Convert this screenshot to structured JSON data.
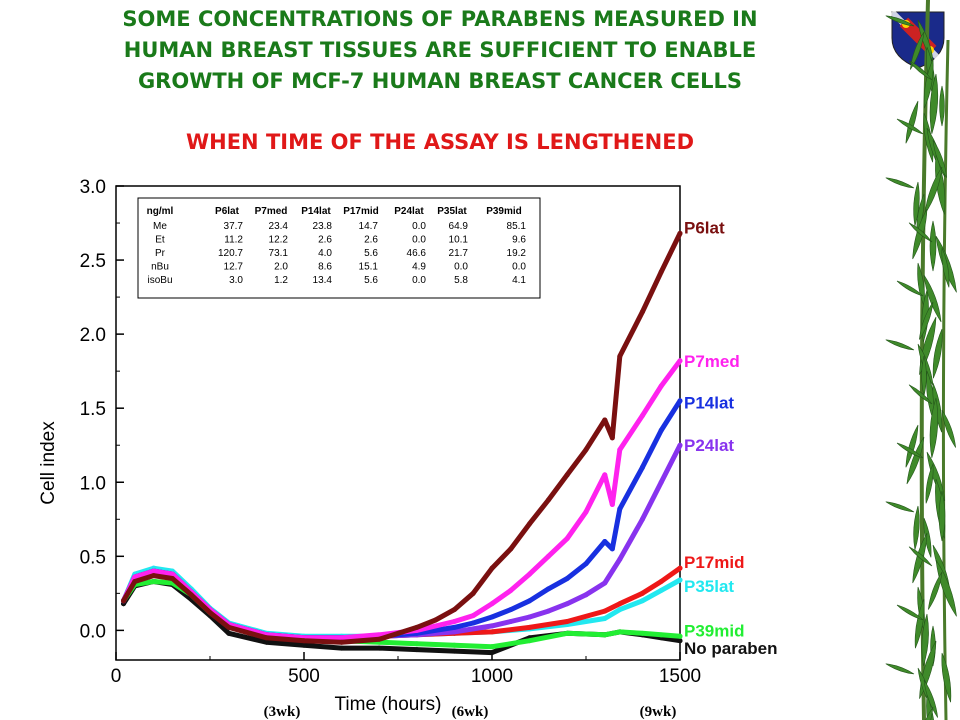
{
  "title_lines": [
    "SOME CONCENTRATIONS OF PARABENS MEASURED IN",
    "HUMAN BREAST TISSUES ARE SUFFICIENT TO ENABLE",
    "GROWTH OF MCF-7 HUMAN BREAST CANCER CELLS"
  ],
  "subtitle": "WHEN TIME OF THE ASSAY IS LENGTHENED",
  "logo_icon": "university-crest-icon",
  "decoration_icon": "bamboo-border-icon",
  "chart_data": {
    "type": "line",
    "xlabel": "Time (hours)",
    "ylabel": "Cell index",
    "xlim": [
      0,
      1500
    ],
    "ylim": [
      -0.2,
      3.0
    ],
    "xticks": [
      0,
      500,
      1000,
      1500
    ],
    "yticks": [
      0.0,
      0.5,
      1.0,
      1.5,
      2.0,
      2.5,
      3.0
    ],
    "ytick_labels": [
      "0.0",
      "0.5",
      "1.0",
      "1.5",
      "2.0",
      "2.5",
      "3.0"
    ],
    "week_labels": [
      {
        "x": 500,
        "text": "(3wk)"
      },
      {
        "x": 1000,
        "text": "(6wk)"
      },
      {
        "x": 1500,
        "text": "(9wk)"
      }
    ],
    "inset_table": {
      "headers": [
        "ng/ml",
        "P6lat",
        "P7med",
        "P14lat",
        "P17mid",
        "P24lat",
        "P35lat",
        "P39mid"
      ],
      "rows": [
        [
          "Me",
          "37.7",
          "23.4",
          "23.8",
          "14.7",
          "0.0",
          "64.9",
          "85.1"
        ],
        [
          "Et",
          "11.2",
          "12.2",
          "2.6",
          "2.6",
          "0.0",
          "10.1",
          "9.6"
        ],
        [
          "Pr",
          "120.7",
          "73.1",
          "4.0",
          "5.6",
          "46.6",
          "21.7",
          "19.2"
        ],
        [
          "nBu",
          "12.7",
          "2.0",
          "8.6",
          "15.1",
          "4.9",
          "0.0",
          "0.0"
        ],
        [
          "isoBu",
          "3.0",
          "1.2",
          "13.4",
          "5.6",
          "0.0",
          "5.8",
          "4.1"
        ]
      ]
    },
    "series": [
      {
        "name": "P6lat",
        "color": "#7a1010",
        "x": [
          20,
          50,
          100,
          150,
          200,
          250,
          300,
          400,
          500,
          600,
          700,
          800,
          850,
          900,
          950,
          1000,
          1050,
          1100,
          1150,
          1200,
          1250,
          1300,
          1320,
          1340,
          1400,
          1450,
          1500
        ],
        "y": [
          0.2,
          0.33,
          0.37,
          0.35,
          0.24,
          0.12,
          0.02,
          -0.05,
          -0.07,
          -0.08,
          -0.06,
          0.02,
          0.07,
          0.14,
          0.25,
          0.42,
          0.55,
          0.72,
          0.88,
          1.05,
          1.22,
          1.42,
          1.3,
          1.85,
          2.15,
          2.42,
          2.68
        ]
      },
      {
        "name": "P7med",
        "color": "#ff22ee",
        "x": [
          20,
          50,
          100,
          150,
          200,
          250,
          300,
          400,
          500,
          600,
          700,
          800,
          900,
          950,
          1000,
          1050,
          1100,
          1150,
          1200,
          1250,
          1300,
          1320,
          1340,
          1400,
          1450,
          1500
        ],
        "y": [
          0.2,
          0.36,
          0.4,
          0.38,
          0.26,
          0.14,
          0.04,
          -0.03,
          -0.05,
          -0.05,
          -0.03,
          0.0,
          0.06,
          0.1,
          0.18,
          0.27,
          0.38,
          0.5,
          0.62,
          0.8,
          1.05,
          0.85,
          1.22,
          1.45,
          1.65,
          1.82
        ]
      },
      {
        "name": "P14lat",
        "color": "#1830e0",
        "x": [
          20,
          50,
          100,
          150,
          200,
          250,
          300,
          400,
          500,
          600,
          700,
          800,
          900,
          950,
          1000,
          1050,
          1100,
          1150,
          1200,
          1250,
          1300,
          1320,
          1340,
          1400,
          1450,
          1500
        ],
        "y": [
          0.2,
          0.36,
          0.4,
          0.38,
          0.26,
          0.14,
          0.04,
          -0.03,
          -0.05,
          -0.05,
          -0.04,
          -0.02,
          0.02,
          0.05,
          0.09,
          0.14,
          0.2,
          0.28,
          0.35,
          0.45,
          0.6,
          0.55,
          0.82,
          1.1,
          1.35,
          1.55
        ]
      },
      {
        "name": "P24lat",
        "color": "#8833ee",
        "x": [
          20,
          50,
          100,
          150,
          200,
          250,
          300,
          400,
          500,
          600,
          700,
          800,
          900,
          1000,
          1050,
          1100,
          1150,
          1200,
          1250,
          1300,
          1340,
          1400,
          1450,
          1500
        ],
        "y": [
          0.2,
          0.36,
          0.4,
          0.38,
          0.26,
          0.14,
          0.04,
          -0.03,
          -0.05,
          -0.05,
          -0.04,
          -0.03,
          -0.01,
          0.03,
          0.06,
          0.09,
          0.13,
          0.18,
          0.24,
          0.32,
          0.48,
          0.75,
          1.0,
          1.25
        ]
      },
      {
        "name": "P17mid",
        "color": "#ee1818",
        "x": [
          20,
          50,
          100,
          150,
          200,
          250,
          300,
          400,
          500,
          600,
          700,
          800,
          900,
          1000,
          1100,
          1200,
          1300,
          1340,
          1400,
          1450,
          1500
        ],
        "y": [
          0.2,
          0.36,
          0.4,
          0.38,
          0.26,
          0.14,
          0.04,
          -0.03,
          -0.05,
          -0.05,
          -0.04,
          -0.03,
          -0.02,
          -0.01,
          0.02,
          0.06,
          0.13,
          0.18,
          0.25,
          0.33,
          0.42
        ]
      },
      {
        "name": "P35lat",
        "color": "#22e8f0",
        "x": [
          20,
          50,
          100,
          150,
          200,
          250,
          300,
          400,
          500,
          600,
          700,
          800,
          900,
          1000,
          1100,
          1200,
          1300,
          1340,
          1400,
          1450,
          1500
        ],
        "y": [
          0.2,
          0.38,
          0.42,
          0.4,
          0.28,
          0.15,
          0.05,
          -0.02,
          -0.04,
          -0.04,
          -0.04,
          -0.03,
          -0.02,
          -0.01,
          0.01,
          0.04,
          0.08,
          0.14,
          0.2,
          0.27,
          0.34
        ]
      },
      {
        "name": "P39mid",
        "color": "#22ee33",
        "x": [
          20,
          50,
          100,
          150,
          200,
          250,
          300,
          400,
          500,
          600,
          700,
          800,
          900,
          1000,
          1100,
          1200,
          1300,
          1340,
          1400,
          1450,
          1500
        ],
        "y": [
          0.2,
          0.31,
          0.33,
          0.32,
          0.24,
          0.12,
          0.03,
          -0.04,
          -0.06,
          -0.07,
          -0.08,
          -0.09,
          -0.1,
          -0.11,
          -0.07,
          -0.02,
          -0.03,
          -0.01,
          -0.02,
          -0.03,
          -0.04
        ]
      },
      {
        "name": "No paraben",
        "color": "#111111",
        "x": [
          20,
          50,
          100,
          150,
          200,
          250,
          300,
          400,
          500,
          600,
          700,
          800,
          900,
          1000,
          1100,
          1200,
          1300,
          1340,
          1400,
          1450,
          1500
        ],
        "y": [
          0.18,
          0.3,
          0.33,
          0.31,
          0.21,
          0.1,
          -0.02,
          -0.08,
          -0.1,
          -0.12,
          -0.12,
          -0.13,
          -0.14,
          -0.15,
          -0.05,
          -0.02,
          -0.03,
          -0.01,
          -0.03,
          -0.05,
          -0.07
        ]
      }
    ],
    "series_labels": [
      {
        "name": "P6lat",
        "y": 2.72,
        "color": "#7a1010"
      },
      {
        "name": "P7med",
        "y": 1.82,
        "color": "#ff22ee"
      },
      {
        "name": "P14lat",
        "y": 1.54,
        "color": "#1830e0"
      },
      {
        "name": "P24lat",
        "y": 1.25,
        "color": "#8833ee"
      },
      {
        "name": "P17mid",
        "y": 0.46,
        "color": "#ee1818"
      },
      {
        "name": "P35lat",
        "y": 0.3,
        "color": "#22e8f0"
      },
      {
        "name": "P39mid",
        "y": 0.0,
        "color": "#22ee33"
      },
      {
        "name": "No paraben",
        "y": -0.12,
        "color": "#111111"
      }
    ]
  }
}
